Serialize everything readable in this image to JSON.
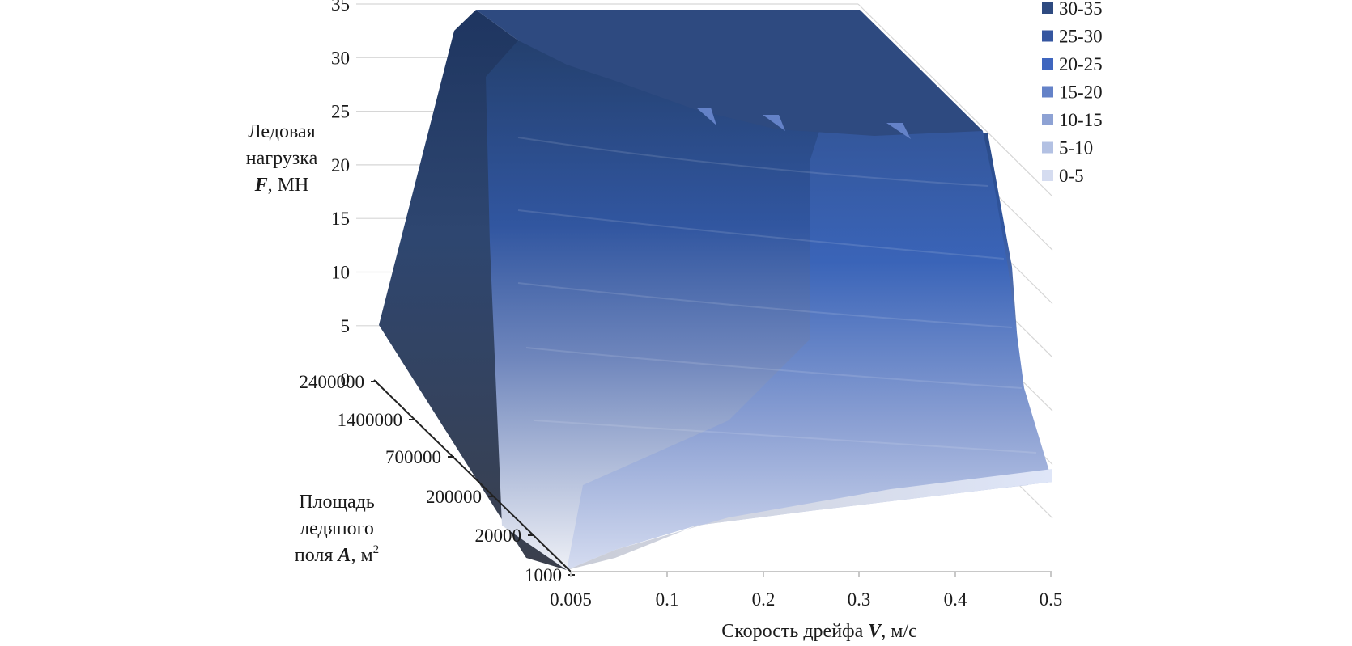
{
  "chart_data": {
    "type": "surface3d",
    "zlabel_lines": [
      "Ледовая",
      "нагрузка"
    ],
    "zlabel_var": "F",
    "zlabel_unit": ", МН",
    "xlabel_prefix": "Скорость дрейфа ",
    "xlabel_var": "V",
    "xlabel_unit": ", м/с",
    "ylabel_lines": [
      "Площадь",
      "ледяного"
    ],
    "ylabel_prefix": "поля ",
    "ylabel_var": "A",
    "ylabel_unit": ", м",
    "ylabel_sup": "2",
    "z_ticks": [
      "35",
      "30",
      "25",
      "20",
      "15",
      "10",
      "5",
      "0"
    ],
    "x_ticks": [
      "0.005",
      "0.1",
      "0.2",
      "0.3",
      "0.4",
      "0.5"
    ],
    "y_ticks": [
      "2400000",
      "1400000",
      "700000",
      "200000",
      "20000",
      "1000"
    ],
    "zlim": [
      0,
      35
    ],
    "legend_position": "top-right",
    "legend": [
      {
        "label": "30-35",
        "color": "#2e4a80"
      },
      {
        "label": "25-30",
        "color": "#3556a0"
      },
      {
        "label": "20-25",
        "color": "#3f66bf"
      },
      {
        "label": "15-20",
        "color": "#6482c8"
      },
      {
        "label": "10-15",
        "color": "#8ea2d4"
      },
      {
        "label": "5-10",
        "color": "#b3c1e3"
      },
      {
        "label": "0-5",
        "color": "#d5dcf0"
      }
    ]
  }
}
